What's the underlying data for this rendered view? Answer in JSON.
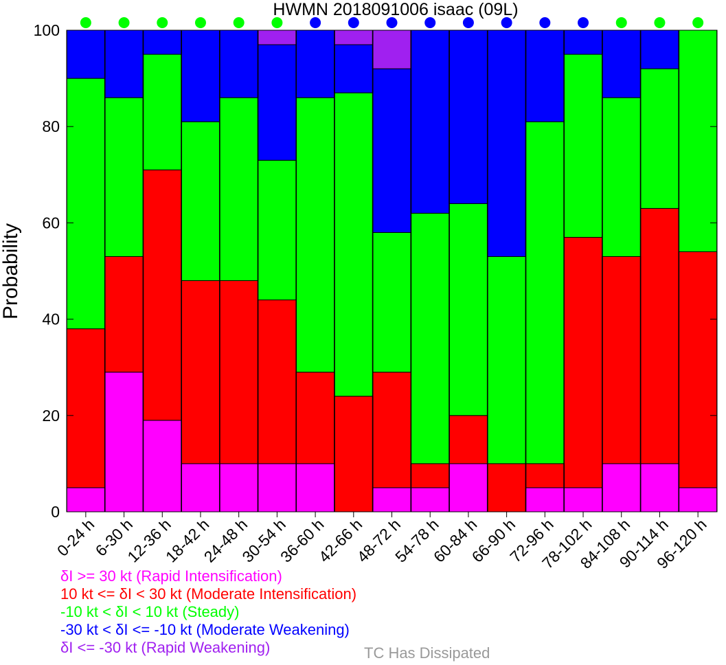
{
  "chart_data": {
    "type": "bar",
    "stacked": true,
    "title": "HWMN 2018091006 isaac (09L)",
    "ylabel": "Probability",
    "ylim": [
      0,
      100
    ],
    "yticks": [
      "0",
      "20",
      "40",
      "60",
      "80",
      "100"
    ],
    "categories": [
      "0-24 h",
      "6-30 h",
      "12-36 h",
      "18-42 h",
      "24-48 h",
      "30-54 h",
      "36-60 h",
      "42-66 h",
      "48-72 h",
      "54-78 h",
      "60-84 h",
      "66-90 h",
      "72-96 h",
      "78-102 h",
      "84-108 h",
      "90-114 h",
      "96-120 h"
    ],
    "series": [
      {
        "name": "δI >= 30 kt (Rapid Intensification)",
        "color": "#ff00ff",
        "values": [
          5,
          29,
          19,
          10,
          10,
          10,
          10,
          0,
          5,
          5,
          10,
          0,
          5,
          5,
          10,
          10,
          5
        ]
      },
      {
        "name": "10 kt <= δI < 30 kt (Moderate Intensification)",
        "color": "#ff0000",
        "values": [
          33,
          24,
          52,
          38,
          38,
          34,
          19,
          24,
          24,
          5,
          10,
          10,
          5,
          52,
          43,
          53,
          49
        ]
      },
      {
        "name": "-10 kt < δI < 10 kt (Steady)",
        "color": "#00ff00",
        "values": [
          52,
          33,
          24,
          33,
          38,
          29,
          57,
          63,
          29,
          52,
          44,
          43,
          71,
          38,
          33,
          29,
          46
        ]
      },
      {
        "name": "-30 kt < δI <= -10 kt (Moderate Weakening)",
        "color": "#0000ff",
        "values": [
          10,
          14,
          5,
          19,
          14,
          24,
          14,
          10,
          34,
          38,
          36,
          47,
          19,
          5,
          14,
          8,
          0
        ]
      },
      {
        "name": "δI <= -30 kt (Rapid Weakening)",
        "color": "#a020f0",
        "values": [
          0,
          0,
          0,
          0,
          0,
          3,
          0,
          3,
          8,
          0,
          0,
          0,
          0,
          0,
          0,
          0,
          0
        ]
      }
    ],
    "top_markers": [
      "#00ff00",
      "#00ff00",
      "#00ff00",
      "#00ff00",
      "#00ff00",
      "#00ff00",
      "#0000ff",
      "#0000ff",
      "#0000ff",
      "#0000ff",
      "#0000ff",
      "#0000ff",
      "#0000ff",
      "#0000ff",
      "#00ff00",
      "#00ff00",
      "#00ff00"
    ],
    "dissipated_label": "TC Has Dissipated",
    "dissipated_color": "#999999",
    "grid": false,
    "legend_position": "bottom-left"
  }
}
